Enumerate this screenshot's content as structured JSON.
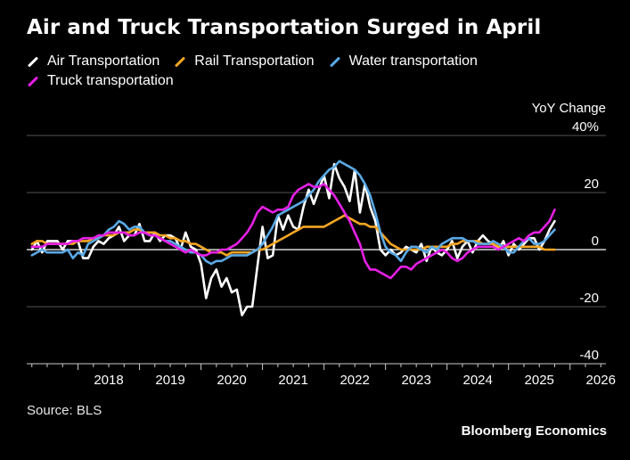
{
  "title": "Air and Truck Transportation Surged in April",
  "source": "Source: BLS",
  "brand": "Bloomberg Economics",
  "chart_data": {
    "type": "line",
    "title": "Air and Truck Transportation Surged in April",
    "ylabel": "YoY Change",
    "ylabel_unit": "%",
    "ylim": [
      -40,
      40
    ],
    "yticks": [
      40,
      20,
      0,
      -20,
      -40
    ],
    "xlim": [
      "2017-03",
      "2026-08"
    ],
    "xticks": [
      "2018",
      "2019",
      "2020",
      "2021",
      "2022",
      "2023",
      "2024",
      "2025",
      "2026"
    ],
    "grid": true,
    "legend_position": "top-left",
    "series": [
      {
        "name": "Air Transportation",
        "color": "#ffffff",
        "start": "2017-04",
        "values": [
          0,
          3,
          -1,
          3,
          3,
          3,
          0,
          3,
          3,
          3,
          -3,
          -3,
          1,
          3,
          2,
          4,
          5,
          8,
          3,
          5,
          5,
          9,
          3,
          3,
          6,
          3,
          5,
          5,
          4,
          0,
          6,
          1,
          0,
          -5,
          -17,
          -10,
          -7,
          -13,
          -10,
          -15,
          -14,
          -23,
          -20,
          -20,
          -6,
          8,
          -3,
          -2,
          12,
          7,
          12,
          8,
          7,
          15,
          21,
          16,
          21,
          26,
          18,
          30,
          25,
          22,
          17,
          28,
          13,
          23,
          15,
          10,
          0,
          -2,
          0,
          -2,
          -1,
          1,
          0,
          -1,
          2,
          -4,
          1,
          -1,
          -2,
          0,
          3,
          -3,
          1,
          3,
          -1,
          3,
          5,
          3,
          2,
          0,
          3,
          -2,
          2,
          0,
          2,
          4,
          4,
          0,
          3,
          7,
          10
        ]
      },
      {
        "name": "Rail Transportation",
        "color": "#f5a623",
        "start": "2017-04",
        "values": [
          2,
          3,
          3,
          2,
          2,
          2,
          2,
          2,
          2,
          3,
          3,
          3,
          4,
          4,
          5,
          5,
          5,
          6,
          6,
          6,
          7,
          7,
          6,
          6,
          6,
          5,
          5,
          4,
          4,
          3,
          3,
          2,
          2,
          1,
          0,
          -1,
          -1,
          -1,
          -2,
          -1,
          -1,
          -1,
          -1,
          -1,
          0,
          0,
          1,
          2,
          3,
          4,
          5,
          6,
          7,
          8,
          8,
          8,
          8,
          8,
          9,
          10,
          11,
          12,
          11,
          10,
          9,
          9,
          8,
          8,
          6,
          4,
          2,
          1,
          0,
          0,
          0,
          0,
          0,
          1,
          1,
          1,
          1,
          1,
          2,
          2,
          3,
          3,
          3,
          3,
          2,
          2,
          2,
          1,
          1,
          1,
          1,
          1,
          1,
          1,
          1,
          1,
          0,
          0,
          0
        ]
      },
      {
        "name": "Water transportation",
        "color": "#5aa9e6",
        "start": "2017-04",
        "values": [
          -2,
          -1,
          0,
          -1,
          -1,
          -1,
          -1,
          0,
          -3,
          -1,
          -2,
          2,
          3,
          4,
          5,
          7,
          8,
          10,
          9,
          7,
          8,
          8,
          6,
          5,
          5,
          4,
          3,
          3,
          2,
          1,
          0,
          -1,
          -1,
          -2,
          -4,
          -5,
          -4,
          -4,
          -3,
          -2,
          -2,
          -2,
          -2,
          -1,
          0,
          2,
          5,
          8,
          12,
          13,
          14,
          15,
          16,
          17,
          19,
          21,
          24,
          26,
          28,
          29,
          31,
          30,
          29,
          28,
          26,
          23,
          19,
          13,
          6,
          1,
          -1,
          -2,
          -4,
          -1,
          1,
          1,
          0,
          -1,
          1,
          0,
          2,
          3,
          4,
          4,
          4,
          3,
          3,
          2,
          2,
          2,
          3,
          2,
          1,
          -1,
          -1,
          1,
          3,
          4,
          2,
          2,
          3,
          5,
          7
        ]
      },
      {
        "name": "Truck transportation",
        "color": "#e61fe6",
        "start": "2017-04",
        "values": [
          1,
          1,
          1,
          2,
          2,
          2,
          2,
          2,
          3,
          3,
          4,
          4,
          4,
          5,
          5,
          6,
          6,
          6,
          6,
          5,
          5,
          6,
          6,
          5,
          5,
          4,
          3,
          2,
          1,
          0,
          -1,
          0,
          -1,
          -2,
          -2,
          -1,
          -1,
          0,
          0,
          1,
          2,
          4,
          6,
          9,
          13,
          15,
          14,
          13,
          14,
          14,
          15,
          19,
          21,
          22,
          23,
          22,
          22,
          23,
          21,
          19,
          16,
          13,
          10,
          6,
          2,
          -4,
          -7,
          -7,
          -8,
          -9,
          -10,
          -8,
          -6,
          -6,
          -7,
          -5,
          -4,
          -3,
          -2,
          -1,
          0,
          -1,
          -3,
          -4,
          -3,
          -1,
          0,
          1,
          1,
          1,
          1,
          0,
          1,
          2,
          3,
          4,
          3,
          5,
          6,
          6,
          8,
          10,
          14
        ]
      }
    ]
  }
}
